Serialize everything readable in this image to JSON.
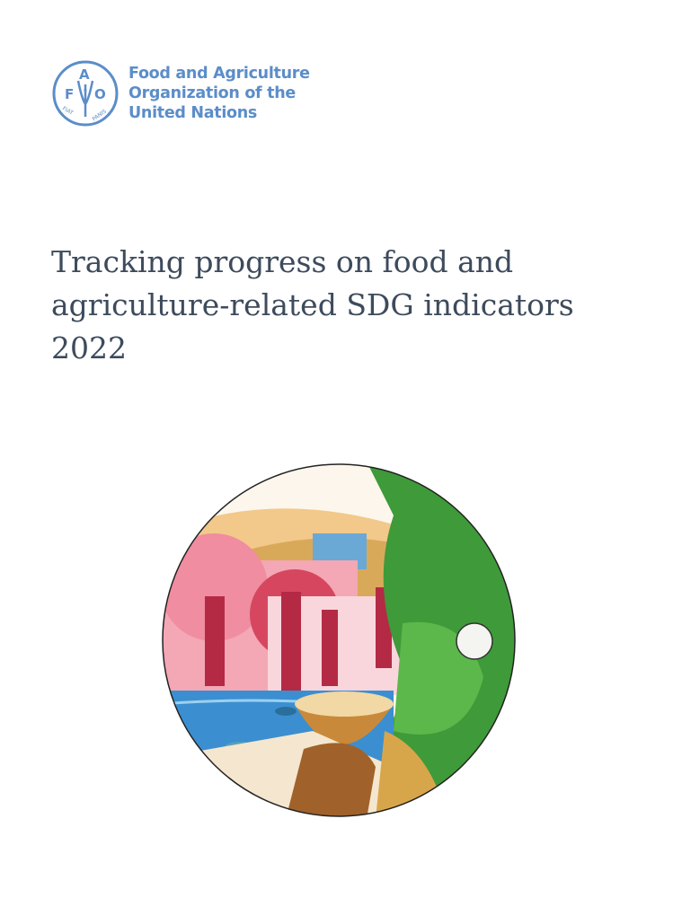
{
  "logo": {
    "letters": "FAO",
    "motto": "FIAT PANIS",
    "org_name_lines": [
      "Food and Agriculture",
      "Organization of the",
      "United Nations"
    ],
    "color": "#5b8dc9"
  },
  "title": {
    "lines": [
      "Tracking progress on food and",
      "agriculture-related SDG indicators",
      "2022"
    ],
    "color": "#3d4b5c"
  }
}
